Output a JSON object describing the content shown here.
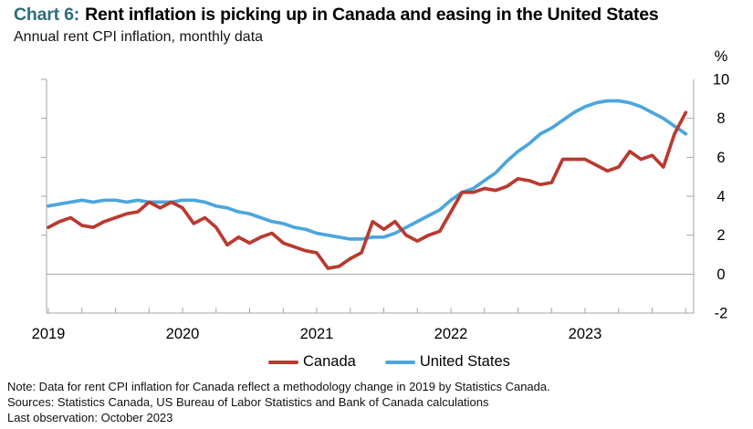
{
  "header": {
    "chart_label": "Chart 6:",
    "title": "Rent inflation is picking up in Canada and easing in the United States",
    "subtitle": "Annual rent CPI inflation, monthly data"
  },
  "colors": {
    "title_accent": "#2d6d7d",
    "canada_line": "#b93a30",
    "us_line": "#4da6dd",
    "axis": "#a6a6a6",
    "text": "#000000"
  },
  "notes": {
    "note": "Note: Data for rent CPI inflation for Canada reflect a methodology change in 2019 by Statistics Canada.",
    "sources": "Sources: Statistics Canada, US Bureau of Labor Statistics and Bank of Canada calculations",
    "last_observation": "Last observation: October 2023"
  },
  "chart_data": {
    "type": "line",
    "title": "Rent inflation is picking up in Canada and easing in the United States",
    "subtitle": "Annual rent CPI inflation, monthly data",
    "unit_label": "%",
    "x_unit": "month",
    "x_range": [
      "2019-01",
      "2023-10"
    ],
    "ylim": [
      -2,
      10
    ],
    "yticks": [
      10,
      8,
      6,
      4,
      2,
      0,
      -2
    ],
    "zero_line": 0,
    "legend_position": "bottom",
    "grid": false,
    "x_year_ticks": [
      {
        "label": "2019",
        "month_index": 0
      },
      {
        "label": "2020",
        "month_index": 12
      },
      {
        "label": "2021",
        "month_index": 24
      },
      {
        "label": "2022",
        "month_index": 36
      },
      {
        "label": "2023",
        "month_index": 48
      }
    ],
    "series": [
      {
        "name": "United States",
        "color": "#4da6dd",
        "values": [
          3.5,
          3.6,
          3.7,
          3.8,
          3.7,
          3.8,
          3.8,
          3.7,
          3.8,
          3.7,
          3.7,
          3.7,
          3.8,
          3.8,
          3.7,
          3.5,
          3.4,
          3.2,
          3.1,
          2.9,
          2.7,
          2.6,
          2.4,
          2.3,
          2.1,
          2.0,
          1.9,
          1.8,
          1.8,
          1.9,
          1.9,
          2.1,
          2.4,
          2.7,
          3.0,
          3.3,
          3.8,
          4.2,
          4.4,
          4.8,
          5.2,
          5.8,
          6.3,
          6.7,
          7.2,
          7.5,
          7.9,
          8.3,
          8.6,
          8.8,
          8.9,
          8.9,
          8.8,
          8.6,
          8.3,
          8.0,
          7.6,
          7.2
        ]
      },
      {
        "name": "Canada",
        "color": "#b93a30",
        "values": [
          2.4,
          2.7,
          2.9,
          2.5,
          2.4,
          2.7,
          2.9,
          3.1,
          3.2,
          3.7,
          3.4,
          3.7,
          3.4,
          2.6,
          2.9,
          2.4,
          1.5,
          1.9,
          1.6,
          1.9,
          2.1,
          1.6,
          1.4,
          1.2,
          1.1,
          0.3,
          0.4,
          0.8,
          1.1,
          2.7,
          2.3,
          2.7,
          2.0,
          1.7,
          2.0,
          2.2,
          3.2,
          4.2,
          4.2,
          4.4,
          4.3,
          4.5,
          4.9,
          4.8,
          4.6,
          4.7,
          5.9,
          5.9,
          5.9,
          5.6,
          5.3,
          5.5,
          6.3,
          5.9,
          6.1,
          5.5,
          7.2,
          8.3
        ]
      }
    ]
  },
  "legend": {
    "canada": "Canada",
    "united_states": "United States"
  }
}
